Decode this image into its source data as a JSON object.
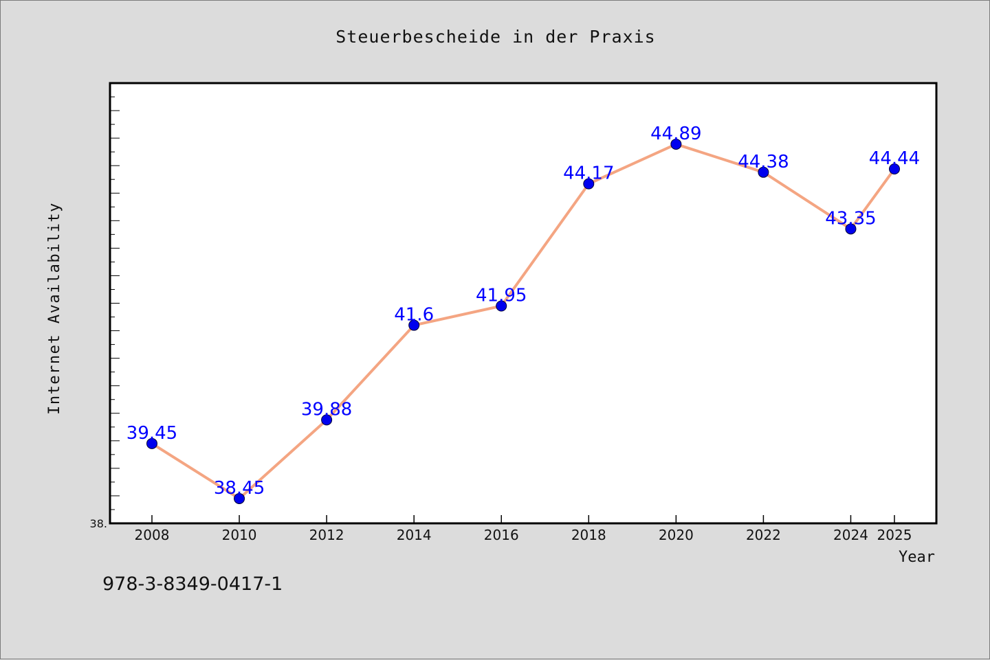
{
  "chart_data": {
    "type": "line",
    "title": "Steuerbescheide in der Praxis",
    "xlabel": "Year",
    "ylabel": "Internet Availability",
    "x": [
      "2008",
      "2010",
      "2012",
      "2014",
      "2016",
      "2018",
      "2020",
      "2022",
      "2024",
      "2025"
    ],
    "series": [
      {
        "values": [
          39.45,
          38.45,
          39.88,
          41.6,
          41.95,
          44.17,
          44.89,
          44.38,
          43.35,
          44.44
        ],
        "data_labels": [
          "39.45",
          "38.45",
          "39.88",
          "41.6",
          "41.95",
          "44.17",
          "44.89",
          "44.38",
          "43.35",
          "44.44"
        ],
        "line_color": "#f4a582",
        "marker_color": "#0000ee",
        "label_color": "#0000ff"
      }
    ],
    "y_tick_label": "38.",
    "ylim": [
      38,
      46
    ],
    "grid": false,
    "legend": "none"
  },
  "footer_text": "978-3-8349-0417-1",
  "colors": {
    "background": "#dcdcdc",
    "plot_background": "#ffffff",
    "axis": "#000000"
  }
}
